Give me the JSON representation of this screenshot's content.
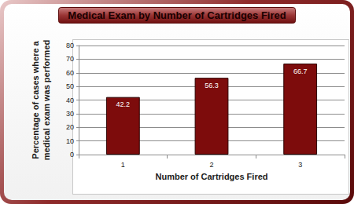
{
  "chart_data": {
    "type": "bar",
    "title": "Medical Exam by Number of Cartridges Fired",
    "x_label": "Number of Cartridges Fired",
    "y_label": "Percentage of cases where a medical exam was performed",
    "categories": [
      "1",
      "2",
      "3"
    ],
    "values": [
      42.2,
      56.3,
      66.7
    ],
    "color": "#7d0c0c",
    "ylim": [
      0,
      80
    ],
    "yticks": [
      0,
      10,
      20,
      30,
      40,
      50,
      60,
      70,
      80
    ],
    "grid": true,
    "data_labels": true
  }
}
